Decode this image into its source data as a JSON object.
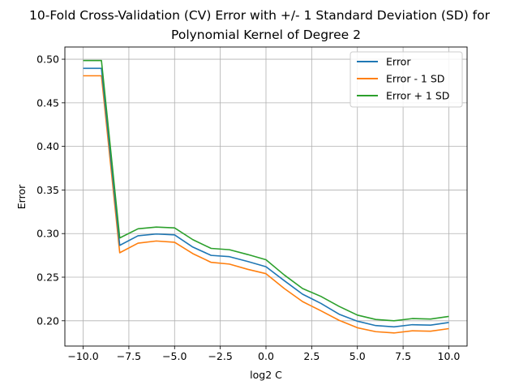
{
  "chart_data": {
    "type": "line",
    "title": "10-Fold Cross-Validation (CV) Error with +/- 1 Standard Deviation (SD) for",
    "subtitle": "Polynomial Kernel of Degree 2",
    "xlabel": "log2 C",
    "ylabel": "Error",
    "xlim": [
      -11,
      11
    ],
    "ylim": [
      0.171,
      0.514
    ],
    "xticks": [
      -10.0,
      -7.5,
      -5.0,
      -2.5,
      0.0,
      2.5,
      5.0,
      7.5,
      10.0
    ],
    "xtick_labels": [
      "−10.0",
      "−7.5",
      "−5.0",
      "−2.5",
      "0.0",
      "2.5",
      "5.0",
      "7.5",
      "10.0"
    ],
    "yticks": [
      0.2,
      0.25,
      0.3,
      0.35,
      0.4,
      0.45,
      0.5
    ],
    "ytick_labels": [
      "0.20",
      "0.25",
      "0.30",
      "0.35",
      "0.40",
      "0.45",
      "0.50"
    ],
    "grid": true,
    "legend_position": "top-right",
    "x": [
      -10,
      -9,
      -8,
      -7,
      -6,
      -5,
      -4,
      -3,
      -2,
      -1,
      0,
      1,
      2,
      3,
      4,
      5,
      6,
      7,
      8,
      9,
      10
    ],
    "series": [
      {
        "name": "Error",
        "color": "#1f77b4",
        "values": [
          0.4895,
          0.4895,
          0.2865,
          0.2975,
          0.2995,
          0.2985,
          0.2845,
          0.275,
          0.2735,
          0.268,
          0.262,
          0.246,
          0.2305,
          0.22,
          0.2075,
          0.1995,
          0.1945,
          0.193,
          0.1955,
          0.195,
          0.198
        ]
      },
      {
        "name": "Error - 1 SD",
        "color": "#ff7f0e",
        "values": [
          0.481,
          0.481,
          0.278,
          0.289,
          0.2915,
          0.29,
          0.277,
          0.267,
          0.265,
          0.259,
          0.254,
          0.237,
          0.222,
          0.2115,
          0.2005,
          0.192,
          0.1875,
          0.186,
          0.1885,
          0.188,
          0.191
        ]
      },
      {
        "name": "Error + 1 SD",
        "color": "#2ca02c",
        "values": [
          0.4985,
          0.4985,
          0.295,
          0.3055,
          0.3075,
          0.3065,
          0.293,
          0.283,
          0.2815,
          0.276,
          0.27,
          0.2525,
          0.237,
          0.228,
          0.2165,
          0.2065,
          0.2015,
          0.2,
          0.2025,
          0.202,
          0.205
        ]
      }
    ]
  }
}
